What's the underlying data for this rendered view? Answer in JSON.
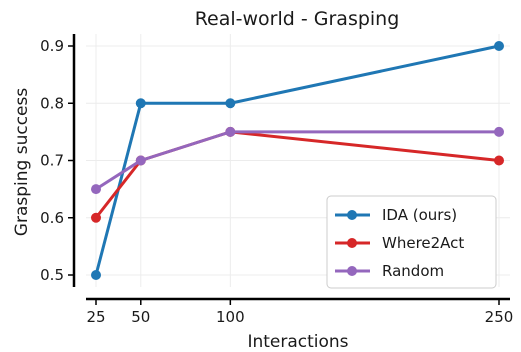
{
  "chart_data": {
    "type": "line",
    "title": "Real-world - Grasping",
    "xlabel": "Interactions",
    "ylabel": "Grasping success",
    "x": [
      25,
      50,
      100,
      250
    ],
    "x_ticks": [
      "25",
      "50",
      "100",
      "250"
    ],
    "y_ticks": [
      "0.5",
      "0.6",
      "0.7",
      "0.8",
      "0.9"
    ],
    "xlim": [
      25,
      250
    ],
    "ylim": [
      0.48,
      0.92
    ],
    "grid": true,
    "legend_position": "bottom-right",
    "series": [
      {
        "name": "IDA (ours)",
        "color": "#1f77b4",
        "values": [
          0.5,
          0.8,
          0.8,
          0.9
        ]
      },
      {
        "name": "Where2Act",
        "color": "#d62728",
        "values": [
          0.6,
          0.7,
          0.75,
          0.7
        ]
      },
      {
        "name": "Random",
        "color": "#9467bd",
        "values": [
          0.65,
          0.7,
          0.75,
          0.75
        ]
      }
    ]
  }
}
